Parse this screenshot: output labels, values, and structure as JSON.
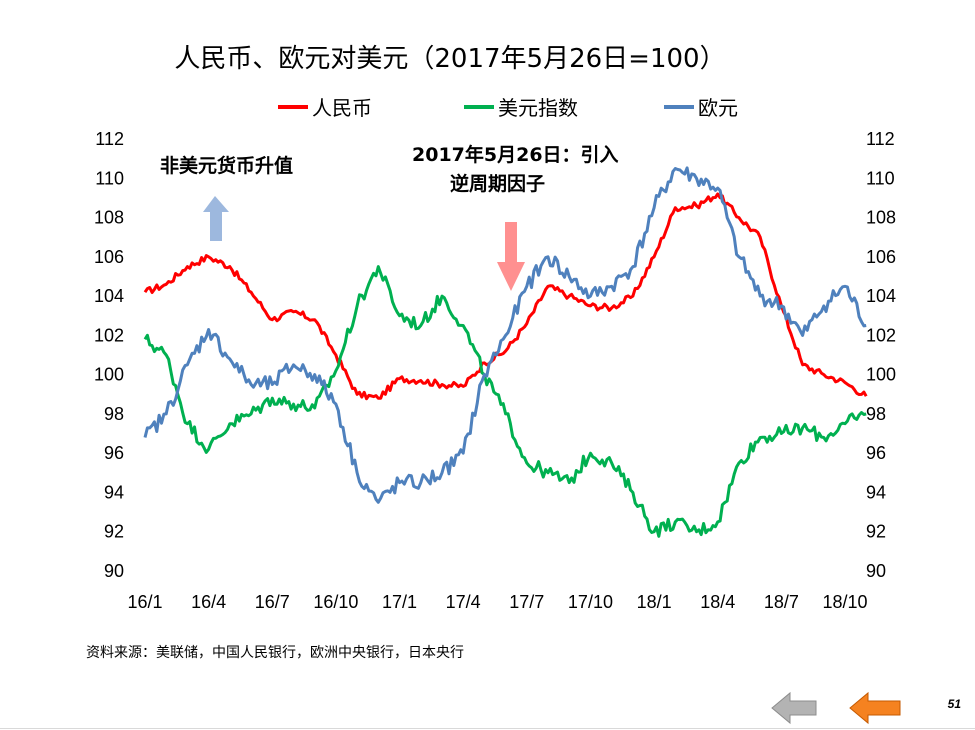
{
  "slide": {
    "title": "人民币、欧元对美元（2017年5月26日=100）",
    "source": "资料来源：美联储，中国人民银行，欧洲中央银行，日本央行",
    "page_number": "51"
  },
  "nav": {
    "prev_icon": "left-arrow-gray-icon",
    "next_icon": "left-arrow-orange-icon",
    "prev_color": "#b3b3b3",
    "next_color": "#f58220"
  },
  "chart_data": {
    "type": "line",
    "title": "人民币、欧元对美元（2017年5月26日=100）",
    "x_tick_labels": [
      "16/1",
      "16/4",
      "16/7",
      "16/10",
      "17/1",
      "17/4",
      "17/7",
      "17/10",
      "18/1",
      "18/4",
      "18/7",
      "18/10"
    ],
    "y_left_ticks": [
      "112",
      "110",
      "108",
      "106",
      "104",
      "102",
      "100",
      "98",
      "96",
      "94",
      "92",
      "90"
    ],
    "y_right_ticks": [
      "112",
      "110",
      "108",
      "106",
      "104",
      "102",
      "100",
      "98",
      "96",
      "94",
      "92",
      "90"
    ],
    "ylim": [
      90,
      112
    ],
    "grid": false,
    "legend_position": "top",
    "x_step": "month",
    "series": [
      {
        "name": "人民币",
        "color": "#ff0000",
        "x": [
          "2016-01",
          "2016-02",
          "2016-03",
          "2016-04",
          "2016-05",
          "2016-06",
          "2016-07",
          "2016-08",
          "2016-09",
          "2016-10",
          "2016-11",
          "2016-12",
          "2017-01",
          "2017-02",
          "2017-03",
          "2017-04",
          "2017-05",
          "2017-06",
          "2017-07",
          "2017-08",
          "2017-09",
          "2017-10",
          "2017-11",
          "2017-12",
          "2018-01",
          "2018-02",
          "2018-03",
          "2018-04",
          "2018-05",
          "2018-06",
          "2018-07",
          "2018-08",
          "2018-09",
          "2018-10",
          "2018-11"
        ],
        "values": [
          104.2,
          104.6,
          105.5,
          106.0,
          105.5,
          104.2,
          102.8,
          103.2,
          102.8,
          101.0,
          99.0,
          98.8,
          99.8,
          99.7,
          99.5,
          99.4,
          100.6,
          101.2,
          102.6,
          104.5,
          104.0,
          103.5,
          103.4,
          104.0,
          106.0,
          108.5,
          108.6,
          109.2,
          108.0,
          107.0,
          103.5,
          100.5,
          100.0,
          99.6,
          98.9
        ]
      },
      {
        "name": "美元指数",
        "color": "#00b050",
        "x": [
          "2016-01",
          "2016-02",
          "2016-03",
          "2016-04",
          "2016-05",
          "2016-06",
          "2016-07",
          "2016-08",
          "2016-09",
          "2016-10",
          "2016-11",
          "2016-12",
          "2017-01",
          "2017-02",
          "2017-03",
          "2017-04",
          "2017-05",
          "2017-06",
          "2017-07",
          "2017-08",
          "2017-09",
          "2017-10",
          "2017-11",
          "2017-12",
          "2018-01",
          "2018-02",
          "2018-03",
          "2018-04",
          "2018-05",
          "2018-06",
          "2018-07",
          "2018-08",
          "2018-09",
          "2018-10",
          "2018-11"
        ],
        "values": [
          101.8,
          101.0,
          97.5,
          96.2,
          97.5,
          98.0,
          98.8,
          98.5,
          98.3,
          100.2,
          103.5,
          105.5,
          103.0,
          102.5,
          104.0,
          102.5,
          100.0,
          98.0,
          95.5,
          95.0,
          94.5,
          96.0,
          95.5,
          94.0,
          92.0,
          92.5,
          92.0,
          92.5,
          95.5,
          96.8,
          97.0,
          97.3,
          96.8,
          97.5,
          98.0
        ]
      },
      {
        "name": "欧元",
        "color": "#4f81bd",
        "x": [
          "2016-01",
          "2016-02",
          "2016-03",
          "2016-04",
          "2016-05",
          "2016-06",
          "2016-07",
          "2016-08",
          "2016-09",
          "2016-10",
          "2016-11",
          "2016-12",
          "2017-01",
          "2017-02",
          "2017-03",
          "2017-04",
          "2017-05",
          "2017-06",
          "2017-07",
          "2017-08",
          "2017-09",
          "2017-10",
          "2017-11",
          "2017-12",
          "2018-01",
          "2018-02",
          "2018-03",
          "2018-04",
          "2018-05",
          "2018-06",
          "2018-07",
          "2018-08",
          "2018-09",
          "2018-10",
          "2018-11"
        ],
        "values": [
          96.8,
          98.0,
          100.5,
          102.3,
          100.8,
          99.5,
          99.5,
          100.5,
          100.0,
          98.5,
          95.0,
          93.5,
          94.5,
          94.5,
          95.0,
          96.0,
          100.0,
          102.0,
          104.5,
          106.0,
          105.0,
          104.0,
          104.5,
          105.5,
          108.5,
          110.5,
          110.0,
          109.5,
          106.0,
          104.0,
          103.5,
          102.0,
          103.5,
          104.5,
          102.5
        ]
      }
    ]
  },
  "annotations": {
    "non_usd_label": "非美元货币升值",
    "date_label_line1": "2017年5月26日：引入",
    "date_label_line2": "逆周期因子"
  }
}
